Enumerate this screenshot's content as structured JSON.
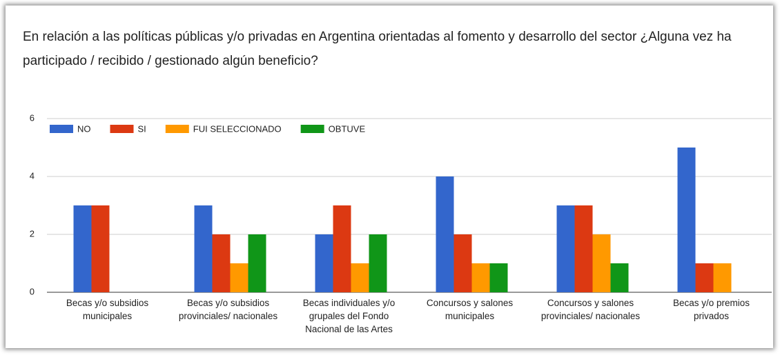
{
  "chart_data": {
    "type": "bar",
    "title": "En relación a las políticas públicas y/o privadas en Argentina orientadas al fomento y desarrollo del sector ¿Alguna vez  ha participado / recibido / gestionado algún beneficio?",
    "categories": [
      "Becas y/o subsidios municipales",
      "Becas y/o subsidios provinciales/ nacionales",
      "Becas individuales y/o grupales del Fondo Nacional de las Artes",
      "Concursos y salones municipales",
      "Concursos y salones provinciales/ nacionales",
      "Becas y/o premios privados"
    ],
    "series": [
      {
        "name": "NO",
        "color": "#3366cc",
        "values": [
          3,
          3,
          2,
          4,
          3,
          5
        ]
      },
      {
        "name": "SI",
        "color": "#dc3912",
        "values": [
          3,
          2,
          3,
          2,
          3,
          1
        ]
      },
      {
        "name": "FUI SELECCIONADO",
        "color": "#ff9900",
        "values": [
          0,
          1,
          1,
          1,
          2,
          1
        ]
      },
      {
        "name": "OBTUVE",
        "color": "#109618",
        "values": [
          0,
          2,
          2,
          1,
          1,
          0
        ]
      }
    ],
    "ylim": [
      0,
      6
    ],
    "yticks": [
      0,
      2,
      4,
      6
    ],
    "grid": true,
    "legend": "top-left"
  }
}
